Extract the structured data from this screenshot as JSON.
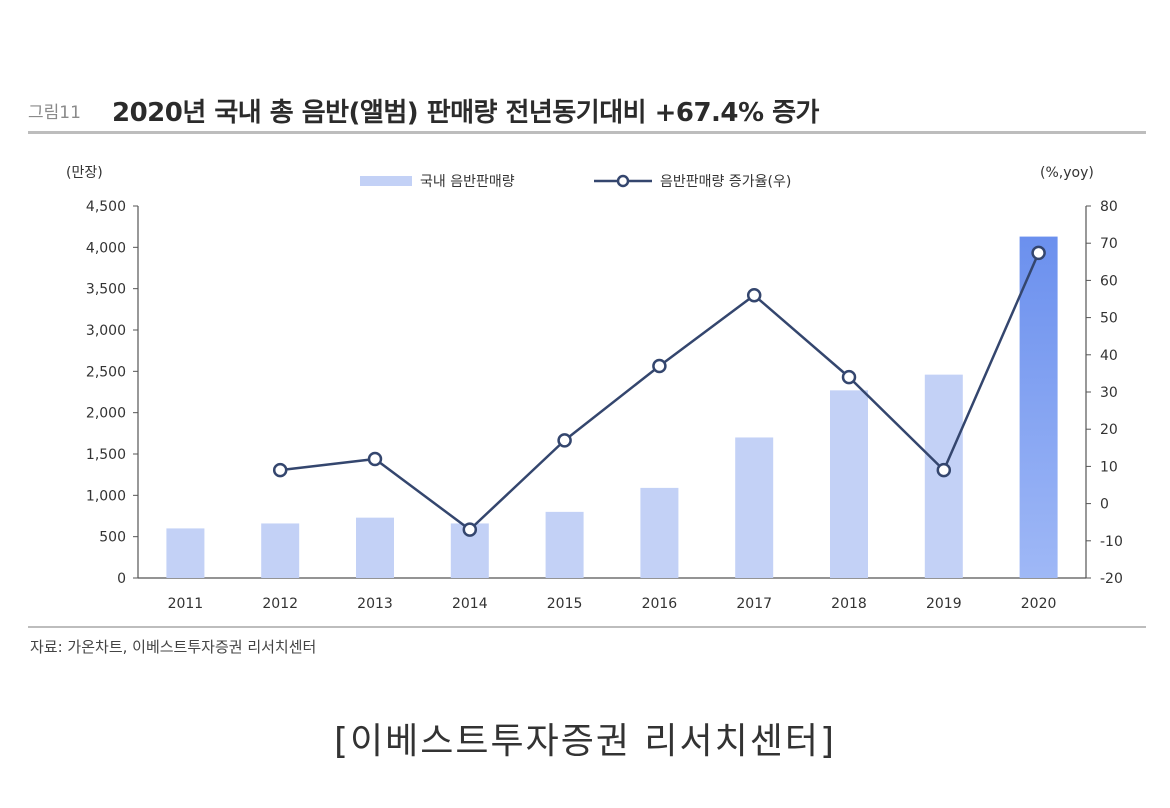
{
  "header": {
    "figure_label": "그림11",
    "title": "2020년 국내 총 음반(앨범) 판매량 전년동기대비 +67.4% 증가"
  },
  "footer": {
    "source": "자료: 가온차트, 이베스트투자증권 리서치센터",
    "caption": "[이베스트투자증권 리서치센터]"
  },
  "chart_data": {
    "type": "bar",
    "categories": [
      "2011",
      "2012",
      "2013",
      "2014",
      "2015",
      "2016",
      "2017",
      "2018",
      "2019",
      "2020"
    ],
    "left_unit": "(만장)",
    "right_unit": "(%,yoy)",
    "ylim_left": [
      0,
      4500
    ],
    "ylim_right": [
      -20,
      80
    ],
    "yticks_left": [
      "4,500",
      "4,000",
      "3,500",
      "3,000",
      "2,500",
      "2,000",
      "1,500",
      "1,000",
      "500",
      "0"
    ],
    "yticks_right": [
      "80",
      "70",
      "60",
      "50",
      "40",
      "30",
      "20",
      "10",
      "0",
      "-10",
      "-20"
    ],
    "series": [
      {
        "name": "국내 음반판매량",
        "type": "bar",
        "axis": "left",
        "values": [
          600,
          660,
          730,
          660,
          800,
          1090,
          1700,
          2270,
          2460,
          4130
        ],
        "color": "#c3d1f6",
        "highlight_color": "#7c9ff0"
      },
      {
        "name": "음반판매량 증가율(우)",
        "type": "line",
        "axis": "right",
        "values": [
          null,
          9,
          12,
          -7,
          17,
          37,
          56,
          34,
          9,
          67.4
        ],
        "color": "#34466e"
      }
    ],
    "grid": false,
    "legend": "top-center"
  }
}
